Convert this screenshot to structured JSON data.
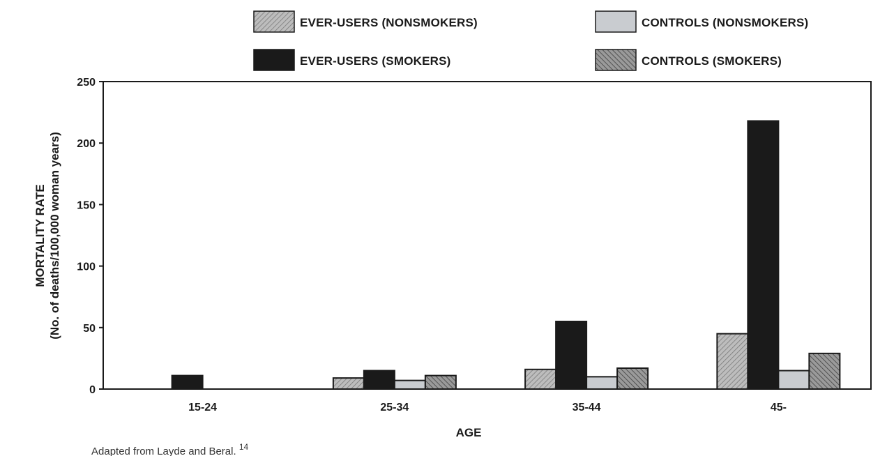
{
  "chart_data": {
    "type": "bar",
    "categories": [
      "15-24",
      "25-34",
      "35-44",
      "45-"
    ],
    "series": [
      {
        "name": "EVER-USERS (NONSMOKERS)",
        "values": [
          0,
          9,
          16,
          45
        ],
        "style": "hatch-light"
      },
      {
        "name": "EVER-USERS (SMOKERS)",
        "values": [
          11,
          15,
          55,
          218
        ],
        "style": "solid-dark"
      },
      {
        "name": "CONTROLS (NONSMOKERS)",
        "values": [
          0,
          7,
          10,
          15
        ],
        "style": "light-gray"
      },
      {
        "name": "CONTROLS (SMOKERS)",
        "values": [
          0,
          11,
          17,
          29
        ],
        "style": "hatch-dark"
      }
    ],
    "ylabel_line1": "MORTALITY RATE",
    "ylabel_line2": "(No. of deaths/100,000 woman years)",
    "xlabel": "AGE",
    "ylim": [
      0,
      250
    ],
    "yticks": [
      0,
      50,
      100,
      150,
      200,
      250
    ],
    "grid": false,
    "legend_position": "top",
    "source": "Adapted from Layde and Beral.",
    "source_ref": "14"
  },
  "colors": {
    "solid_dark": "#1a1a1a",
    "light_gray": "#c9ccd0",
    "hatch_light_bg": "#b8b8b8",
    "hatch_dark_bg": "#8c8c8c",
    "axis": "#1a1a1a"
  }
}
